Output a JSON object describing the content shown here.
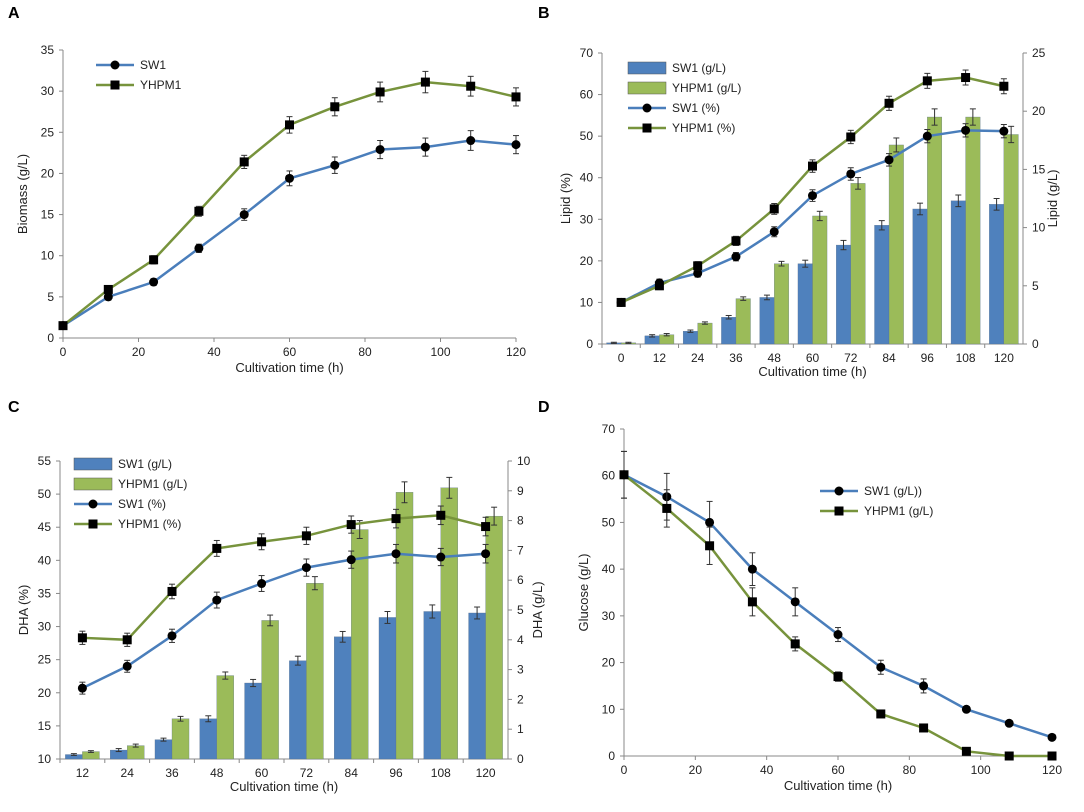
{
  "colors": {
    "sw1_line": "#4a7ebb",
    "yhpm1_line": "#77933c",
    "sw1_bar": "#4f81bd",
    "yhpm1_bar": "#9bbb59",
    "marker": "#000000",
    "axis": "#888888"
  },
  "chart_data": [
    {
      "panel": "A",
      "type": "line",
      "xlabel": "Cultivation time (h)",
      "ylabel": "Biomass (g/L)",
      "xlim": [
        0,
        120
      ],
      "ylim": [
        0,
        35
      ],
      "xticks": [
        0,
        20,
        40,
        60,
        80,
        100,
        120
      ],
      "yticks": [
        0,
        5,
        10,
        15,
        20,
        25,
        30,
        35
      ],
      "legend_position": "top-left",
      "series": [
        {
          "name": "SW1",
          "marker": "circle",
          "x": [
            0,
            12,
            24,
            36,
            48,
            60,
            72,
            84,
            96,
            108,
            120
          ],
          "values": [
            1.5,
            5.0,
            6.8,
            10.9,
            15.0,
            19.4,
            21.0,
            22.9,
            23.2,
            24.0,
            23.5
          ],
          "err": [
            0.2,
            0.4,
            0.4,
            0.5,
            0.7,
            0.9,
            1.0,
            1.1,
            1.1,
            1.2,
            1.1
          ]
        },
        {
          "name": "YHPM1",
          "marker": "square",
          "x": [
            0,
            12,
            24,
            36,
            48,
            60,
            72,
            84,
            96,
            108,
            120
          ],
          "values": [
            1.5,
            5.9,
            9.5,
            15.4,
            21.4,
            25.9,
            28.1,
            29.9,
            31.1,
            30.6,
            29.3
          ],
          "err": [
            0.2,
            0.4,
            0.5,
            0.6,
            0.8,
            1.0,
            1.1,
            1.2,
            1.3,
            1.2,
            1.1
          ]
        }
      ]
    },
    {
      "panel": "B",
      "type": "bar+line",
      "xlabel": "Cultivation time (h)",
      "ylabel": "Lipid (%)",
      "y2label": "Lipid (g/L)",
      "categories": [
        "0",
        "12",
        "24",
        "36",
        "48",
        "60",
        "72",
        "84",
        "96",
        "108",
        "120"
      ],
      "ylim": [
        0,
        70
      ],
      "y2lim": [
        0,
        25
      ],
      "yticks": [
        0,
        10,
        20,
        30,
        40,
        50,
        60,
        70
      ],
      "y2ticks": [
        0,
        5,
        10,
        15,
        20,
        25
      ],
      "legend_position": "top-left",
      "bars": [
        {
          "name": "SW1 (g/L)",
          "values": [
            0.1,
            0.7,
            1.1,
            2.3,
            4.0,
            6.9,
            8.5,
            10.2,
            11.6,
            12.3,
            12.0
          ],
          "err": [
            0.05,
            0.1,
            0.1,
            0.15,
            0.2,
            0.3,
            0.4,
            0.4,
            0.5,
            0.5,
            0.5
          ]
        },
        {
          "name": "YHPM1 (g/L)",
          "values": [
            0.1,
            0.8,
            1.8,
            3.9,
            6.9,
            11.0,
            13.8,
            17.1,
            19.5,
            19.5,
            18.0
          ],
          "err": [
            0.05,
            0.1,
            0.1,
            0.15,
            0.2,
            0.4,
            0.5,
            0.6,
            0.7,
            0.7,
            0.7
          ]
        }
      ],
      "lines": [
        {
          "name": "SW1 (%)",
          "marker": "circle",
          "values": [
            10.0,
            14.7,
            17.0,
            21.0,
            27.0,
            35.7,
            40.9,
            44.3,
            50.0,
            51.4,
            51.2
          ],
          "err": [
            0.7,
            0.9,
            0.9,
            1.0,
            1.2,
            1.4,
            1.5,
            1.5,
            1.6,
            1.6,
            1.6
          ]
        },
        {
          "name": "YHPM1 (%)",
          "marker": "square",
          "values": [
            10.0,
            14.0,
            18.8,
            24.8,
            32.5,
            42.8,
            49.8,
            57.9,
            63.3,
            64.1,
            62.0
          ],
          "err": [
            0.7,
            0.9,
            1.0,
            1.1,
            1.3,
            1.5,
            1.6,
            1.7,
            1.8,
            1.8,
            1.8
          ]
        }
      ]
    },
    {
      "panel": "C",
      "type": "bar+line",
      "xlabel": "Cultivation time (h)",
      "ylabel": "DHA (%)",
      "y2label": "DHA (g/L)",
      "categories": [
        "12",
        "24",
        "36",
        "48",
        "60",
        "72",
        "84",
        "96",
        "108",
        "120"
      ],
      "ylim": [
        10,
        55
      ],
      "y2lim": [
        0,
        10
      ],
      "yticks": [
        10,
        15,
        20,
        25,
        30,
        35,
        40,
        45,
        50,
        55
      ],
      "y2ticks": [
        0,
        1,
        2,
        3,
        4,
        5,
        6,
        7,
        8,
        9,
        10
      ],
      "legend_position": "top-left",
      "bars": [
        {
          "name": "SW1 (g/L)",
          "values": [
            0.15,
            0.3,
            0.65,
            1.35,
            2.55,
            3.3,
            4.1,
            4.75,
            4.95,
            4.9
          ],
          "err": [
            0.03,
            0.05,
            0.05,
            0.1,
            0.12,
            0.15,
            0.18,
            0.2,
            0.22,
            0.2
          ]
        },
        {
          "name": "YHPM1 (g/L)",
          "values": [
            0.25,
            0.45,
            1.35,
            2.8,
            4.65,
            5.9,
            7.7,
            8.95,
            9.1,
            8.15
          ],
          "err": [
            0.03,
            0.05,
            0.08,
            0.12,
            0.18,
            0.22,
            0.3,
            0.35,
            0.35,
            0.3
          ]
        }
      ],
      "lines": [
        {
          "name": "SW1 (%)",
          "marker": "circle",
          "values": [
            20.7,
            24.0,
            28.6,
            34.0,
            36.5,
            38.9,
            40.1,
            41.0,
            40.5,
            41.0
          ],
          "err": [
            0.9,
            0.9,
            1.0,
            1.2,
            1.2,
            1.3,
            1.3,
            1.4,
            1.3,
            1.4
          ]
        },
        {
          "name": "YHPM1 (%)",
          "marker": "square",
          "values": [
            28.3,
            28.0,
            35.3,
            41.8,
            42.8,
            43.7,
            45.4,
            46.3,
            46.8,
            45.1
          ],
          "err": [
            1.0,
            1.0,
            1.1,
            1.2,
            1.2,
            1.3,
            1.3,
            1.4,
            1.4,
            1.4
          ]
        }
      ]
    },
    {
      "panel": "D",
      "type": "line",
      "xlabel": "Cultivation time (h)",
      "ylabel": "Glucose (g/L)",
      "xlim": [
        0,
        120
      ],
      "ylim": [
        0,
        70
      ],
      "xticks": [
        0,
        20,
        40,
        60,
        80,
        100,
        120
      ],
      "yticks": [
        0,
        10,
        20,
        30,
        40,
        50,
        60,
        70
      ],
      "legend_position": "top-right",
      "series": [
        {
          "name": "SW1 (g/L))",
          "marker": "circle",
          "x": [
            0,
            12,
            24,
            36,
            48,
            60,
            72,
            84,
            96,
            108,
            120
          ],
          "values": [
            60.2,
            55.5,
            50.0,
            40.0,
            33.0,
            26.0,
            19.0,
            15.0,
            10.0,
            7.0,
            4.0
          ],
          "err": [
            5.0,
            5.0,
            4.5,
            3.5,
            3.0,
            1.5,
            1.5,
            1.5,
            0.5,
            0.3,
            0.3
          ]
        },
        {
          "name": "YHPM1 (g/L)",
          "marker": "square",
          "x": [
            0,
            12,
            24,
            36,
            48,
            60,
            72,
            84,
            96,
            108,
            120
          ],
          "values": [
            60.2,
            53.0,
            45.0,
            33.0,
            24.0,
            17.0,
            9.0,
            6.0,
            1.0,
            0.0,
            0.0
          ],
          "err": [
            5.0,
            4.0,
            4.0,
            3.0,
            1.5,
            1.0,
            0.5,
            0.5,
            0.5,
            0.2,
            0.2
          ]
        }
      ]
    }
  ]
}
